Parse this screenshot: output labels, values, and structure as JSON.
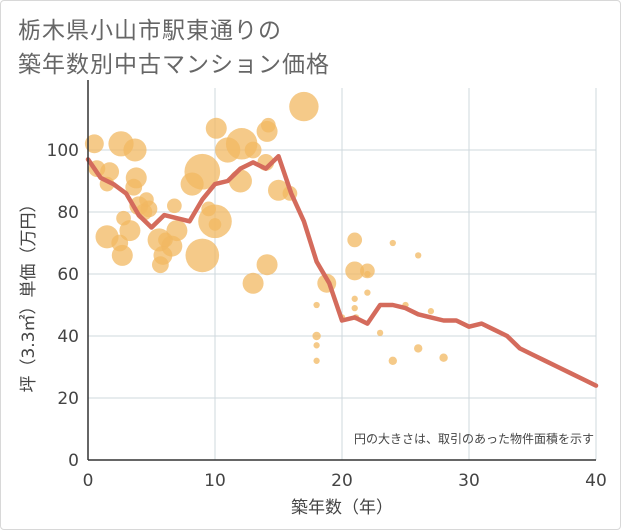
{
  "chart_data": {
    "type": "scatter",
    "title_lines": [
      "栃木県小山市駅東通りの",
      "築年数別中古マンション価格"
    ],
    "xlabel": "築年数（年）",
    "ylabel": "坪（3.3㎡）単価（万円）",
    "xlim": [
      0,
      40
    ],
    "ylim": [
      0,
      120
    ],
    "x_ticks": [
      0,
      10,
      20,
      30,
      40
    ],
    "y_ticks": [
      0,
      20,
      40,
      60,
      80,
      100
    ],
    "grid": true,
    "annotation": "円の大きさは、取引のあった物件面積を示す",
    "colors": {
      "bubble": "#f2b862",
      "line": "#d46b5c",
      "grid": "#cfd8de",
      "axis": "#333333"
    },
    "bubbles": [
      {
        "x": 0.5,
        "y": 102,
        "s": 9
      },
      {
        "x": 0.7,
        "y": 94,
        "s": 8
      },
      {
        "x": 1.5,
        "y": 89,
        "s": 7
      },
      {
        "x": 1.7,
        "y": 93,
        "s": 9
      },
      {
        "x": 1.5,
        "y": 72,
        "s": 11
      },
      {
        "x": 2.5,
        "y": 70,
        "s": 8
      },
      {
        "x": 2.7,
        "y": 66,
        "s": 10
      },
      {
        "x": 2.8,
        "y": 78,
        "s": 7
      },
      {
        "x": 2.6,
        "y": 102,
        "s": 12
      },
      {
        "x": 3.3,
        "y": 74,
        "s": 10
      },
      {
        "x": 3.6,
        "y": 88,
        "s": 8
      },
      {
        "x": 3.8,
        "y": 91,
        "s": 10
      },
      {
        "x": 3.7,
        "y": 100,
        "s": 11
      },
      {
        "x": 4.0,
        "y": 82,
        "s": 9
      },
      {
        "x": 4.4,
        "y": 80,
        "s": 8
      },
      {
        "x": 4.6,
        "y": 84,
        "s": 7
      },
      {
        "x": 4.8,
        "y": 81,
        "s": 8
      },
      {
        "x": 5.6,
        "y": 71,
        "s": 11
      },
      {
        "x": 5.7,
        "y": 63,
        "s": 8
      },
      {
        "x": 5.9,
        "y": 66,
        "s": 9
      },
      {
        "x": 6.1,
        "y": 71,
        "s": 7
      },
      {
        "x": 6.6,
        "y": 69,
        "s": 10
      },
      {
        "x": 7.0,
        "y": 74,
        "s": 10
      },
      {
        "x": 6.8,
        "y": 82,
        "s": 7
      },
      {
        "x": 8.2,
        "y": 89,
        "s": 11
      },
      {
        "x": 9.0,
        "y": 66,
        "s": 16
      },
      {
        "x": 9.0,
        "y": 93,
        "s": 17
      },
      {
        "x": 9.5,
        "y": 81,
        "s": 7
      },
      {
        "x": 10.0,
        "y": 77,
        "s": 16
      },
      {
        "x": 10.0,
        "y": 76,
        "s": 6
      },
      {
        "x": 10.1,
        "y": 107,
        "s": 10
      },
      {
        "x": 11.0,
        "y": 100,
        "s": 12
      },
      {
        "x": 12.0,
        "y": 90,
        "s": 11
      },
      {
        "x": 12.1,
        "y": 102,
        "s": 15
      },
      {
        "x": 13.0,
        "y": 100,
        "s": 8
      },
      {
        "x": 13.0,
        "y": 57,
        "s": 10
      },
      {
        "x": 14.0,
        "y": 96,
        "s": 8
      },
      {
        "x": 14.1,
        "y": 106,
        "s": 10
      },
      {
        "x": 14.2,
        "y": 108,
        "s": 7
      },
      {
        "x": 14.1,
        "y": 63,
        "s": 10
      },
      {
        "x": 15.0,
        "y": 87,
        "s": 10
      },
      {
        "x": 15.9,
        "y": 86,
        "s": 7
      },
      {
        "x": 17.0,
        "y": 114,
        "s": 14
      },
      {
        "x": 18.0,
        "y": 50,
        "s": 3
      },
      {
        "x": 18.0,
        "y": 40,
        "s": 4
      },
      {
        "x": 18.0,
        "y": 37,
        "s": 3
      },
      {
        "x": 18.0,
        "y": 32,
        "s": 3
      },
      {
        "x": 18.8,
        "y": 57,
        "s": 9
      },
      {
        "x": 20.0,
        "y": 46,
        "s": 3
      },
      {
        "x": 21.0,
        "y": 71,
        "s": 7
      },
      {
        "x": 21.0,
        "y": 61,
        "s": 9
      },
      {
        "x": 21.0,
        "y": 52,
        "s": 3
      },
      {
        "x": 21.0,
        "y": 49,
        "s": 3
      },
      {
        "x": 21.1,
        "y": 46,
        "s": 3
      },
      {
        "x": 22.0,
        "y": 61,
        "s": 7
      },
      {
        "x": 22.0,
        "y": 60,
        "s": 3
      },
      {
        "x": 22.0,
        "y": 54,
        "s": 3
      },
      {
        "x": 23.0,
        "y": 41,
        "s": 3
      },
      {
        "x": 24.0,
        "y": 70,
        "s": 3
      },
      {
        "x": 24.0,
        "y": 32,
        "s": 4
      },
      {
        "x": 25.0,
        "y": 50,
        "s": 3
      },
      {
        "x": 26.0,
        "y": 66,
        "s": 3
      },
      {
        "x": 26.0,
        "y": 36,
        "s": 4
      },
      {
        "x": 27.0,
        "y": 48,
        "s": 3
      },
      {
        "x": 28.0,
        "y": 33,
        "s": 4
      }
    ],
    "line": {
      "x": [
        0,
        1,
        2,
        3,
        4,
        5,
        6,
        7,
        8,
        9,
        10,
        11,
        12,
        13,
        14,
        15,
        16,
        17,
        18,
        19,
        20,
        21,
        22,
        23,
        24,
        25,
        26,
        27,
        28,
        29,
        30,
        31,
        32,
        33,
        34,
        35,
        36,
        37,
        38,
        39,
        40
      ],
      "y": [
        97,
        91,
        89,
        86,
        79,
        75,
        79,
        78,
        77,
        84,
        89,
        90,
        94,
        96,
        94,
        98,
        86,
        77,
        64,
        57,
        45,
        46,
        44,
        50,
        50,
        49,
        47,
        46,
        45,
        45,
        43,
        44,
        42,
        40,
        36,
        34,
        32,
        30,
        28,
        26,
        24
      ]
    }
  }
}
